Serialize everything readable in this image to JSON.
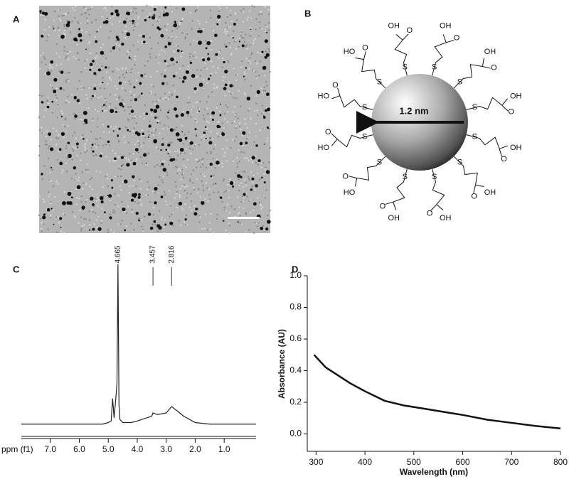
{
  "panel_a": {
    "label": "A"
  },
  "panel_b": {
    "label": "B",
    "diameter": "1.2 nm",
    "sulfur": "S",
    "hydroxyl": "OH",
    "hydroxyl_left": "HO",
    "oxygen": "O"
  },
  "chart_data": [
    {
      "type": "spectrum",
      "label": "C",
      "xlabel": "ppm (f1)",
      "x": [
        8.0,
        5.2,
        5.0,
        4.9,
        4.85,
        4.8,
        4.75,
        4.7,
        4.665,
        4.63,
        4.6,
        4.5,
        4.2,
        4.0,
        3.5,
        3.457,
        3.3,
        3.0,
        2.816,
        2.6,
        2.4,
        2.0,
        1.5,
        1.0,
        -0.1
      ],
      "values": [
        0,
        0,
        1,
        2,
        16,
        4,
        14,
        25,
        100,
        12,
        3,
        1,
        1,
        2,
        5,
        7,
        6,
        7,
        11,
        8,
        5,
        1,
        0,
        0,
        0
      ],
      "xlim": [
        8.0,
        -0.1
      ],
      "ylim": [
        -5,
        100
      ],
      "xticks": [
        {
          "value": 7,
          "label": "7.0"
        },
        {
          "value": 6,
          "label": "6.0"
        },
        {
          "value": 5,
          "label": "5.0"
        },
        {
          "value": 4,
          "label": "4.0"
        },
        {
          "value": 3,
          "label": "3.0"
        },
        {
          "value": 2,
          "label": "2.0"
        },
        {
          "value": 1,
          "label": "1.0"
        }
      ],
      "peaks": [
        4.665,
        3.457,
        2.816
      ],
      "color": "#222222"
    },
    {
      "type": "line",
      "label": "D",
      "xlabel": "Wavelength (nm)",
      "ylabel": "Absorbance (AU)",
      "x": [
        296,
        320,
        340,
        370,
        400,
        440,
        480,
        520,
        560,
        600,
        650,
        700,
        750,
        800
      ],
      "values": [
        0.5,
        0.42,
        0.38,
        0.32,
        0.27,
        0.21,
        0.18,
        0.16,
        0.14,
        0.12,
        0.09,
        0.07,
        0.05,
        0.035
      ],
      "xlim": [
        282,
        800
      ],
      "ylim": [
        -0.11,
        1.0
      ],
      "xticks": [
        300,
        400,
        500,
        600,
        700,
        800
      ],
      "yticks": [
        {
          "value": 0,
          "label": "0.0"
        },
        {
          "value": 0.2,
          "label": "0.2"
        },
        {
          "value": 0.4,
          "label": "0.4"
        },
        {
          "value": 0.6,
          "label": "0.6"
        },
        {
          "value": 0.8,
          "label": "0.8"
        },
        {
          "value": 1,
          "label": "1.0"
        }
      ],
      "color": "#111111"
    }
  ]
}
